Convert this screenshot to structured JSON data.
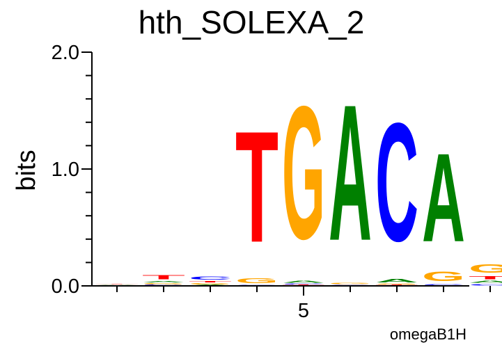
{
  "chart_data": {
    "type": "sequence-logo",
    "title": "hth_SOLEXA_2",
    "ylabel": "bits",
    "ylim": [
      0,
      2
    ],
    "yticks": [
      "0.0",
      "1.0",
      "2.0"
    ],
    "xtick_label": "5",
    "xtick_position": 5,
    "footer": "omegaB1H",
    "colors": {
      "A": "#008000",
      "C": "#0000ff",
      "G": "#ffa500",
      "T": "#ff0000"
    },
    "positions": [
      {
        "pos": 1,
        "stack": [
          {
            "letter": "G",
            "height": 0.003
          },
          {
            "letter": "C",
            "height": 0.003
          },
          {
            "letter": "A",
            "height": 0.004
          },
          {
            "letter": "T",
            "height": 0.006
          }
        ]
      },
      {
        "pos": 2,
        "stack": [
          {
            "letter": "C",
            "height": 0.01
          },
          {
            "letter": "G",
            "height": 0.015
          },
          {
            "letter": "A",
            "height": 0.02
          },
          {
            "letter": "T",
            "height": 0.055
          }
        ]
      },
      {
        "pos": 3,
        "stack": [
          {
            "letter": "A",
            "height": 0.01
          },
          {
            "letter": "G",
            "height": 0.015
          },
          {
            "letter": "T",
            "height": 0.02
          },
          {
            "letter": "C",
            "height": 0.045
          }
        ]
      },
      {
        "pos": 4,
        "stack": [
          {
            "letter": "A",
            "height": 0.005
          },
          {
            "letter": "C",
            "height": 0.005
          },
          {
            "letter": "G",
            "height": 0.07
          },
          {
            "letter": "T",
            "height": 1.52
          }
        ]
      },
      {
        "pos": 5,
        "stack": [
          {
            "letter": "T",
            "height": 0.01
          },
          {
            "letter": "C",
            "height": 0.01
          },
          {
            "letter": "A",
            "height": 0.03
          },
          {
            "letter": "G",
            "height": 1.82
          }
        ]
      },
      {
        "pos": 6,
        "stack": [
          {
            "letter": "T",
            "height": 0.005
          },
          {
            "letter": "C",
            "height": 0.005
          },
          {
            "letter": "G",
            "height": 0.02
          },
          {
            "letter": "A",
            "height": 1.86
          }
        ]
      },
      {
        "pos": 7,
        "stack": [
          {
            "letter": "T",
            "height": 0.01
          },
          {
            "letter": "G",
            "height": 0.01
          },
          {
            "letter": "A",
            "height": 0.05
          },
          {
            "letter": "C",
            "height": 1.62
          }
        ]
      },
      {
        "pos": 8,
        "stack": [
          {
            "letter": "T",
            "height": 0.005
          },
          {
            "letter": "C",
            "height": 0.01
          },
          {
            "letter": "G",
            "height": 0.13
          },
          {
            "letter": "A",
            "height": 1.21
          }
        ]
      },
      {
        "pos": 9,
        "stack": [
          {
            "letter": "C",
            "height": 0.02
          },
          {
            "letter": "A",
            "height": 0.03
          },
          {
            "letter": "T",
            "height": 0.04
          },
          {
            "letter": "G",
            "height": 0.12
          }
        ]
      }
    ]
  }
}
